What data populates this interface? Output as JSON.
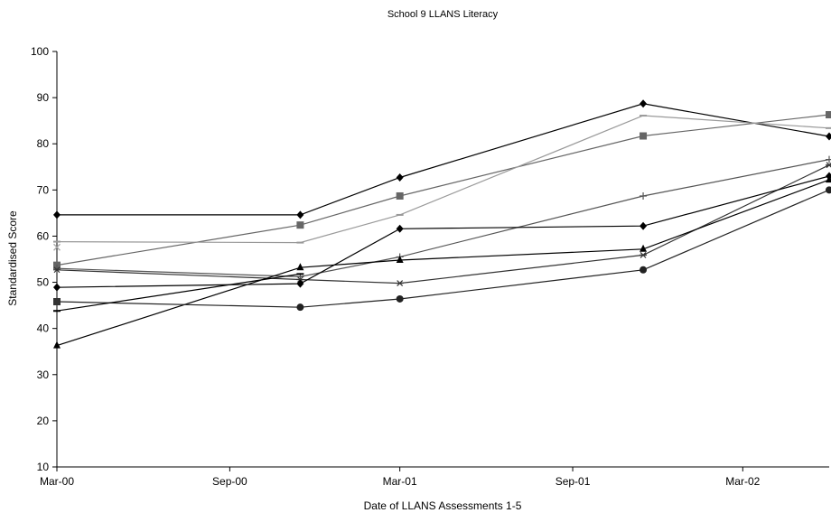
{
  "chart_data": {
    "type": "line",
    "title": "School 9  LLANS Literacy",
    "xlabel": "Date of LLANS Assessments 1-5",
    "ylabel": "Standardised Score",
    "x": [
      "2000-03-01",
      "2000-11-15",
      "2001-03-01",
      "2001-11-15",
      "2002-06-01"
    ],
    "xlim": [
      "2000-03-01",
      "2002-06-01"
    ],
    "xticks": [
      {
        "date": "2000-03-01",
        "label": "Mar-00"
      },
      {
        "date": "2000-09-01",
        "label": "Sep-00"
      },
      {
        "date": "2001-03-01",
        "label": "Mar-01"
      },
      {
        "date": "2001-09-01",
        "label": "Sep-01"
      },
      {
        "date": "2002-03-01",
        "label": "Mar-02"
      }
    ],
    "ylim": [
      10,
      100
    ],
    "yticks": [
      10,
      20,
      30,
      40,
      50,
      60,
      70,
      80,
      90,
      100
    ],
    "grid": false,
    "series": [
      {
        "values": [
          64.6,
          64.6,
          72.7,
          88.7,
          81.6
        ],
        "color": "#000000",
        "marker": "diamond"
      },
      {
        "values": [
          53.7,
          62.4,
          68.7,
          81.7,
          86.3
        ],
        "color": "#666666",
        "marker": "square"
      },
      {
        "values": [
          58.8,
          58.6,
          64.6,
          86.1,
          83.4
        ],
        "color": "#999999",
        "marker": "dash"
      },
      {
        "values": [
          53.0,
          51.2,
          55.5,
          68.7,
          76.6
        ],
        "color": "#555555",
        "marker": "plus"
      },
      {
        "values": [
          52.7,
          50.6,
          49.8,
          55.9,
          75.4
        ],
        "color": "#333333",
        "marker": "star"
      },
      {
        "values": [
          48.9,
          49.7,
          61.6,
          62.2,
          73.0
        ],
        "color": "#000000",
        "marker": "diamond"
      },
      {
        "values": [
          36.3,
          53.2,
          54.8,
          57.2,
          72.2
        ],
        "color": "#000000",
        "marker": "triangle"
      },
      {
        "values": [
          45.8,
          44.6,
          46.4,
          52.7,
          70.0
        ],
        "color": "#222222",
        "marker": "circle"
      },
      {
        "values": [
          43.8,
          51.8,
          null,
          null,
          null
        ],
        "color": "#000000",
        "marker": "dash"
      },
      {
        "values": [
          45.8,
          null,
          null,
          null,
          null
        ],
        "color": "#333333",
        "marker": "square"
      },
      {
        "values": [
          57.6,
          null,
          null,
          null,
          null
        ],
        "color": "#aaaaaa",
        "marker": "x"
      }
    ]
  }
}
